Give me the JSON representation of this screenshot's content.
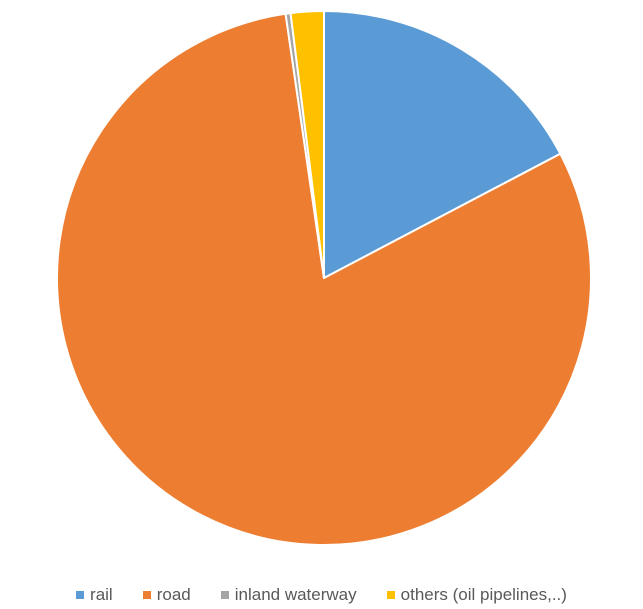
{
  "chart_data": {
    "type": "pie",
    "title": "",
    "categories": [
      "rail",
      "road",
      "inland waterway",
      "others (oil pipelines,..)"
    ],
    "values": [
      17.3,
      80.4,
      0.3,
      2.0
    ],
    "unit": "%",
    "start_angle_deg": 0,
    "direction": "clockwise",
    "legend_position": "bottom",
    "colors": [
      "#5B9BD5",
      "#ED7D31",
      "#A5A5A5",
      "#FFC000"
    ]
  }
}
